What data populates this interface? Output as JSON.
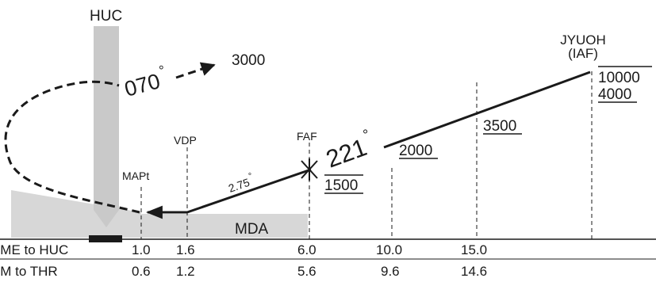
{
  "fixes": {
    "huc": "HUC",
    "iaf_name": "JYUOH",
    "iaf_label": "(IAF)",
    "faf": "FAF",
    "vdp": "VDP",
    "mapt": "MAPt"
  },
  "missed_approach": {
    "heading": "070",
    "altitude": "3000"
  },
  "final_course": "221",
  "glidepath_angle": "2.75",
  "mda_label": "MDA",
  "altitudes": {
    "iaf_upper": "10000",
    "iaf_lower": "4000",
    "step_1": "3500",
    "step_2": "2000",
    "faf": "1500"
  },
  "degree_symbol": "°",
  "distance_table": {
    "row1_label": "DME to HUC",
    "row2_label": "NM to THR",
    "dme": [
      "1.0",
      "1.6",
      "6.0",
      "10.0",
      "15.0"
    ],
    "nm": [
      "0.6",
      "1.2",
      "5.6",
      "9.6",
      "14.6"
    ]
  },
  "colors": {
    "ink": "#1a1a1a",
    "shading": "#d7d7d7",
    "tower": "#c9c9c9"
  }
}
